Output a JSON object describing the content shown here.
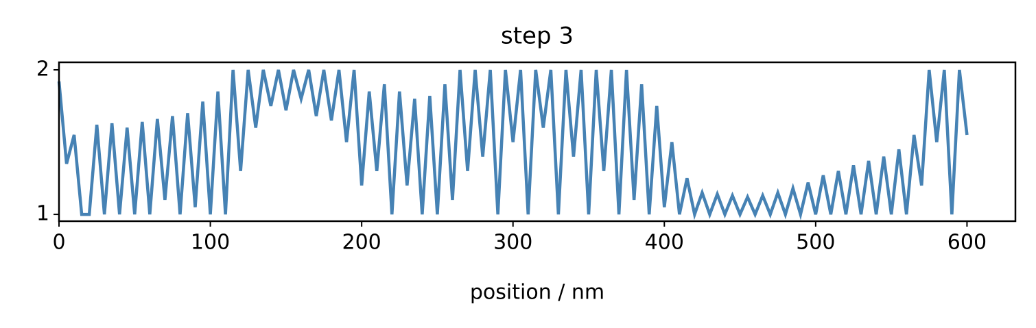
{
  "chart_data": {
    "type": "line",
    "title": "step 3",
    "x_label": "position / nm",
    "x": [
      0,
      5,
      10,
      15,
      20,
      25,
      30,
      35,
      40,
      45,
      50,
      55,
      60,
      65,
      70,
      75,
      80,
      85,
      90,
      95,
      100,
      105,
      110,
      115,
      120,
      125,
      130,
      135,
      140,
      145,
      150,
      155,
      160,
      165,
      170,
      175,
      180,
      185,
      190,
      195,
      200,
      205,
      210,
      215,
      220,
      225,
      230,
      235,
      240,
      245,
      250,
      255,
      260,
      265,
      270,
      275,
      280,
      285,
      290,
      295,
      300,
      305,
      310,
      315,
      320,
      325,
      330,
      335,
      340,
      345,
      350,
      355,
      360,
      365,
      370,
      375,
      380,
      385,
      390,
      395,
      400,
      405,
      410,
      415,
      420,
      425,
      430,
      435,
      440,
      445,
      450,
      455,
      460,
      465,
      470,
      475,
      480,
      485,
      490,
      495,
      500,
      505,
      510,
      515,
      520,
      525,
      530,
      535,
      540,
      545,
      550,
      555,
      560,
      565,
      570,
      575,
      580,
      585,
      590,
      595,
      600
    ],
    "series": [
      {
        "name": "step 3",
        "color": "#4682b4",
        "values": [
          1.92,
          1.35,
          1.55,
          1.0,
          1.0,
          1.62,
          1.0,
          1.63,
          1.0,
          1.6,
          1.0,
          1.64,
          1.0,
          1.66,
          1.1,
          1.68,
          1.0,
          1.7,
          1.05,
          1.78,
          1.0,
          1.85,
          1.0,
          2.0,
          1.3,
          2.0,
          1.6,
          2.0,
          1.75,
          2.0,
          1.72,
          2.0,
          1.8,
          2.0,
          1.68,
          2.0,
          1.65,
          2.0,
          1.5,
          2.0,
          1.2,
          1.85,
          1.3,
          1.9,
          1.0,
          1.85,
          1.2,
          1.8,
          1.0,
          1.82,
          1.0,
          1.9,
          1.1,
          2.0,
          1.3,
          2.0,
          1.4,
          2.0,
          1.0,
          2.0,
          1.5,
          2.0,
          1.0,
          2.0,
          1.6,
          2.0,
          1.0,
          2.0,
          1.4,
          2.0,
          1.0,
          2.0,
          1.3,
          2.0,
          1.0,
          2.0,
          1.1,
          1.9,
          1.0,
          1.75,
          1.05,
          1.5,
          1.0,
          1.25,
          1.0,
          1.15,
          1.0,
          1.14,
          1.0,
          1.13,
          1.0,
          1.12,
          1.0,
          1.13,
          1.0,
          1.15,
          1.0,
          1.18,
          1.0,
          1.22,
          1.0,
          1.27,
          1.0,
          1.3,
          1.0,
          1.34,
          1.0,
          1.37,
          1.0,
          1.4,
          1.0,
          1.45,
          1.0,
          1.55,
          1.2,
          2.0,
          1.5,
          2.0,
          1.0,
          2.0,
          1.55
        ]
      }
    ],
    "xlim": [
      0,
      632
    ],
    "ylim": [
      0.953,
      2.052
    ],
    "xticks": [
      0,
      100,
      200,
      300,
      400,
      500,
      600
    ],
    "yticks": [
      1,
      2
    ]
  }
}
